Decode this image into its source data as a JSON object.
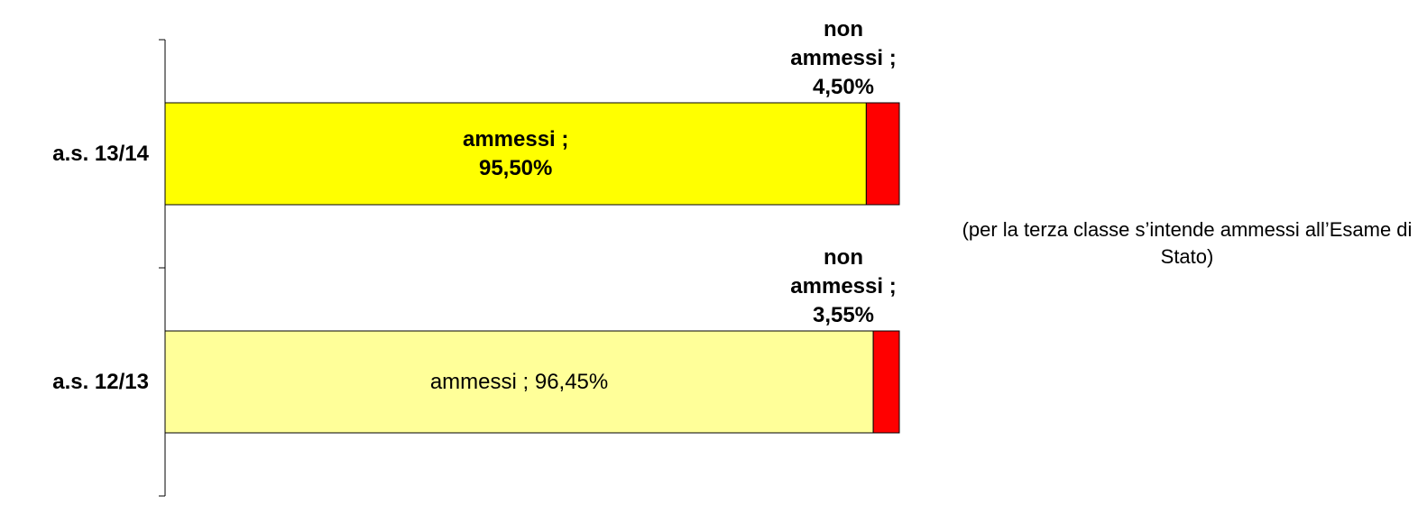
{
  "chart_data": {
    "type": "stacked_bar_horizontal",
    "categories": [
      "a.s. 13/14",
      "a.s. 12/13"
    ],
    "series": [
      {
        "name": "ammessi",
        "colors": [
          "#ffff00",
          "#ffff99"
        ],
        "values": [
          95.5,
          96.45
        ],
        "value_labels": [
          "ammessi ; 95,50%",
          "ammessi ; 96,45%"
        ]
      },
      {
        "name": "non ammessi",
        "color": "#ff0000",
        "values": [
          4.5,
          3.55
        ],
        "value_labels": [
          "non ammessi ; 4,50%",
          "non ammessi ; 3,55%"
        ]
      }
    ],
    "xlim": [
      0,
      100
    ],
    "annotation": "(per la terza classe s’intende ammessi all’Esame di Stato)"
  }
}
